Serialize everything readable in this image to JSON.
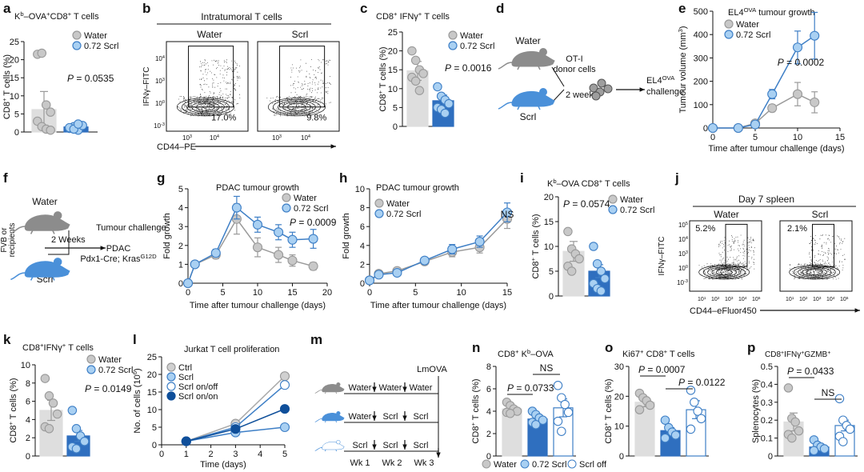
{
  "colors": {
    "water": "#b8b8b8",
    "water_dark": "#8a8a8a",
    "scrl": "#2f6fbf",
    "scrl_light": "#a6cdf0",
    "scrl_mid": "#5b9bd9",
    "onon": "#0f4f9a",
    "axis": "#111111",
    "mouse_grey": "#8c8c8c",
    "mouse_blue": "#4a90d9"
  },
  "chart_data": [
    {
      "id": "a",
      "type": "bar",
      "title": "Kb–OVA+CD8+ T cells",
      "title_parts": [
        "K",
        "b",
        "–OVA",
        "+",
        "CD8",
        "+",
        " T cells"
      ],
      "ylabel": "CD8+ T cells (%)",
      "ylim": [
        0,
        25
      ],
      "yticks": [
        "0",
        "5",
        "10",
        "15",
        "20",
        "25"
      ],
      "categories": [
        "Water",
        "0.72 Scrl"
      ],
      "means": [
        6.2,
        1.4
      ],
      "errors": [
        5.0,
        0.7
      ],
      "points": [
        [
          21.5,
          21.8,
          7.5,
          5.5,
          3.0,
          1.5,
          0.8,
          0.5
        ],
        [
          1.0,
          1.5,
          0.5,
          1.8,
          1.2,
          0.8,
          2.2
        ]
      ],
      "legend": [
        "Water",
        "0.72 Scrl"
      ],
      "annotations": [
        {
          "text_i": "P",
          "text": " = 0.0535"
        }
      ]
    },
    {
      "id": "c",
      "type": "bar",
      "title": "CD8+ IFNγ+ T cells",
      "ylabel": "CD8+ T cells (%)",
      "ylim": [
        0,
        25
      ],
      "yticks": [
        "0",
        "5",
        "10",
        "15",
        "20",
        "25"
      ],
      "categories": [
        "Water",
        "0.72 Scrl"
      ],
      "means": [
        14.7,
        6.8
      ],
      "errors": [
        2.5,
        1.5
      ],
      "points": [
        [
          20.0,
          17.5,
          15.0,
          14.0,
          13.0,
          12.0,
          9.5
        ],
        [
          10.5,
          8.0,
          7.0,
          6.0,
          5.0,
          4.5,
          3.5
        ]
      ],
      "legend": [
        "Water",
        "0.72 Scrl"
      ],
      "annotations": [
        {
          "text_i": "P",
          "text": " = 0.0016"
        }
      ]
    },
    {
      "id": "e",
      "type": "line",
      "title": "EL4OVA tumour growth",
      "title_parts": [
        "EL4",
        "OVA",
        " tumour growth"
      ],
      "xlabel": "Time after tumour challenge (days)",
      "ylabel": "Tumour volume (mm3)",
      "xlim": [
        0,
        15
      ],
      "ylim": [
        0,
        500
      ],
      "xticks": [
        "0",
        "5",
        "10",
        "15"
      ],
      "yticks": [
        "0",
        "100",
        "200",
        "300",
        "400",
        "500"
      ],
      "series": [
        {
          "name": "Water",
          "x": [
            0,
            3,
            5,
            7,
            10,
            12
          ],
          "y": [
            0,
            0,
            20,
            85,
            145,
            110
          ],
          "err": [
            0,
            0,
            5,
            15,
            50,
            45
          ]
        },
        {
          "name": "0.72 Scrl",
          "x": [
            0,
            3,
            5,
            7,
            10,
            12
          ],
          "y": [
            0,
            0,
            15,
            145,
            345,
            395
          ],
          "err": [
            0,
            0,
            5,
            20,
            70,
            100
          ]
        }
      ],
      "legend": [
        "Water",
        "0.72 Scrl"
      ],
      "annotations": [
        {
          "text_i": "P",
          "text": " = 0.0002"
        }
      ]
    },
    {
      "id": "g",
      "type": "line",
      "title": "PDAC tumour growth",
      "xlabel": "Time after tumour challenge (days)",
      "ylabel": "Fold growth",
      "xlim": [
        0,
        20
      ],
      "ylim": [
        0,
        5
      ],
      "xticks": [
        "0",
        "5",
        "10",
        "15",
        "20"
      ],
      "yticks": [
        "0",
        "1",
        "2",
        "3",
        "4",
        "5"
      ],
      "series": [
        {
          "name": "Water",
          "x": [
            0,
            1,
            4,
            7,
            10,
            13,
            15,
            18
          ],
          "y": [
            0,
            1.0,
            1.5,
            3.4,
            1.9,
            1.5,
            1.2,
            0.9
          ],
          "err": [
            0,
            0.1,
            0.2,
            0.8,
            0.5,
            0.4,
            0.3,
            0.2
          ]
        },
        {
          "name": "0.72 Scrl",
          "x": [
            0,
            1,
            4,
            7,
            10,
            13,
            15,
            18
          ],
          "y": [
            0,
            1.0,
            1.6,
            4.0,
            3.1,
            2.7,
            2.3,
            2.35
          ],
          "err": [
            0,
            0.1,
            0.2,
            0.6,
            0.4,
            0.4,
            0.4,
            0.5
          ]
        }
      ],
      "legend": [
        "Water",
        "0.72 Scrl"
      ],
      "annotations": [
        {
          "text_i": "P",
          "text": " = 0.0009"
        }
      ]
    },
    {
      "id": "h",
      "type": "line",
      "title": "PDAC tumour growth",
      "xlabel": "Time after tumour challenge (days)",
      "ylabel": "Fold growth",
      "xlim": [
        0,
        15
      ],
      "ylim": [
        0,
        10
      ],
      "xticks": [
        "0",
        "5",
        "10",
        "15"
      ],
      "yticks": [
        "0",
        "2",
        "4",
        "6",
        "8",
        "10"
      ],
      "series": [
        {
          "name": "Water",
          "x": [
            0,
            1,
            3,
            6,
            9,
            12,
            15
          ],
          "y": [
            0.3,
            1.0,
            1.3,
            2.3,
            3.3,
            3.8,
            6.8
          ],
          "err": [
            0.1,
            0.1,
            0.2,
            0.3,
            0.5,
            0.6,
            1.0
          ]
        },
        {
          "name": "0.72 Scrl",
          "x": [
            0,
            1,
            3,
            6,
            9,
            12,
            15
          ],
          "y": [
            0.3,
            0.9,
            1.1,
            2.4,
            3.6,
            4.4,
            7.5
          ],
          "err": [
            0.1,
            0.1,
            0.2,
            0.3,
            0.5,
            0.6,
            1.0
          ]
        }
      ],
      "legend": [
        "Water",
        "0.72 Scrl"
      ],
      "annotations": [
        {
          "text": "NS"
        }
      ]
    },
    {
      "id": "i",
      "type": "bar",
      "title": "Kb–OVA CD8+ T cells",
      "title_parts": [
        "K",
        "b",
        "–OVA CD8",
        "+",
        " T cells"
      ],
      "ylabel": "CD8+ T cells (%)",
      "ylim": [
        0,
        20
      ],
      "yticks": [
        "0",
        "5",
        "10",
        "15",
        "20"
      ],
      "categories": [
        "Water",
        "0.72 Scrl"
      ],
      "means": [
        9.0,
        5.0
      ],
      "errors": [
        2.0,
        1.3
      ],
      "points": [
        [
          13.0,
          9.5,
          8.5,
          7.5,
          6.0,
          5.0
        ],
        [
          10.0,
          6.5,
          5.0,
          3.5,
          2.5,
          1.5,
          1.0
        ]
      ],
      "legend": [
        "Water",
        "0.72 Scrl"
      ],
      "annotations": [
        {
          "text_i": "P",
          "text": " = 0.0574"
        }
      ]
    },
    {
      "id": "k",
      "type": "bar",
      "title": "CD8+IFNγ+ T cells",
      "ylabel": "CD8+ T cells (%)",
      "ylim": [
        0,
        10
      ],
      "yticks": [
        "0",
        "2",
        "4",
        "6",
        "8",
        "10"
      ],
      "categories": [
        "Water",
        "0.72 Scrl"
      ],
      "means": [
        5.0,
        2.2
      ],
      "errors": [
        1.1,
        0.6
      ],
      "points": [
        [
          8.5,
          6.6,
          5.8,
          4.6,
          3.2,
          3.0
        ],
        [
          5.0,
          3.0,
          2.2,
          1.6,
          1.0,
          0.8
        ]
      ],
      "legend": [
        "Water",
        "0.72 Scrl"
      ],
      "annotations": [
        {
          "text_i": "P",
          "text": " = 0.0149"
        }
      ]
    },
    {
      "id": "l",
      "type": "line",
      "title": "Jurkat T cell proliferation",
      "xlabel": "Time (days)",
      "ylabel": "No. of cells (106)",
      "xlim": [
        0,
        5
      ],
      "ylim": [
        0,
        25
      ],
      "xticks": [
        "0",
        "1",
        "2",
        "3",
        "4",
        "5"
      ],
      "yticks": [
        "0",
        "5",
        "10",
        "15",
        "20",
        "25"
      ],
      "series": [
        {
          "name": "Ctrl",
          "x": [
            1,
            3,
            5
          ],
          "y": [
            1,
            6,
            19.5
          ]
        },
        {
          "name": "Scrl",
          "x": [
            1,
            3,
            5
          ],
          "y": [
            1,
            3.5,
            5
          ]
        },
        {
          "name": "Scrl on/off",
          "x": [
            1,
            3,
            5
          ],
          "y": [
            1,
            5,
            17
          ]
        },
        {
          "name": "Scrl on/on",
          "x": [
            1,
            3,
            5
          ],
          "y": [
            1,
            4.5,
            10.2
          ]
        }
      ],
      "legend": [
        "Ctrl",
        "Scrl",
        "Scrl on/off",
        "Scrl on/on"
      ]
    },
    {
      "id": "n",
      "type": "bar",
      "title": "CD8+ Kb–OVA",
      "title_parts": [
        "CD8",
        "+",
        " K",
        "b",
        "–OVA"
      ],
      "ylabel": "CD8+ T cells (%)",
      "ylim": [
        0,
        8
      ],
      "yticks": [
        "0",
        "2",
        "4",
        "6",
        "8"
      ],
      "categories": [
        "Water",
        "0.72 Scrl",
        "Scrl off"
      ],
      "means": [
        4.2,
        3.3,
        4.3
      ],
      "errors": [
        0.3,
        0.3,
        0.8
      ],
      "points": [
        [
          4.8,
          4.5,
          4.2,
          4.0,
          3.9,
          3.8
        ],
        [
          4.0,
          3.7,
          3.4,
          3.2,
          3.0,
          2.8
        ],
        [
          6.3,
          5.2,
          4.6,
          3.9,
          3.1,
          2.2
        ]
      ],
      "legend": [
        "Water",
        "0.72 Scrl",
        "Scrl off"
      ],
      "annotations": [
        {
          "text_i": "P",
          "text": " = 0.0733"
        },
        {
          "text": "NS"
        }
      ]
    },
    {
      "id": "o",
      "type": "bar",
      "title": "Ki67+ CD8+ T cells",
      "ylabel": "CD8+ T cells (%)",
      "ylim": [
        0,
        30
      ],
      "yticks": [
        "0",
        "10",
        "20",
        "30"
      ],
      "categories": [
        "Water",
        "0.72 Scrl",
        "Scrl off"
      ],
      "means": [
        18.0,
        8.5,
        15.5
      ],
      "errors": [
        1.5,
        1.0,
        3.0
      ],
      "points": [
        [
          21.0,
          19.5,
          18.5,
          17.0,
          15.5
        ],
        [
          12.0,
          9.5,
          8.0,
          7.0,
          6.0
        ],
        [
          22.0,
          18.0,
          15.0,
          12.5,
          9.0
        ]
      ],
      "legend": [
        "Water",
        "0.72 Scrl",
        "Scrl off"
      ],
      "annotations": [
        {
          "text_i": "P",
          "text": " = 0.0007"
        },
        {
          "text_i": "P",
          "text": " = 0.0122"
        }
      ]
    },
    {
      "id": "p",
      "type": "bar",
      "title": "CD8+IFNγ+GZMB+",
      "ylabel": "Splenocytes (%)",
      "ylim": [
        0,
        0.5
      ],
      "yticks": [
        "0",
        "0.1",
        "0.2",
        "0.3",
        "0.4",
        "0.5"
      ],
      "categories": [
        "Water",
        "0.72 Scrl",
        "Scrl off"
      ],
      "means": [
        0.19,
        0.05,
        0.17
      ],
      "errors": [
        0.05,
        0.01,
        0.03
      ],
      "points": [
        [
          0.38,
          0.21,
          0.19,
          0.14,
          0.12,
          0.1
        ],
        [
          0.09,
          0.06,
          0.05,
          0.04,
          0.03
        ],
        [
          0.32,
          0.2,
          0.17,
          0.15,
          0.11,
          0.08
        ]
      ],
      "legend": [
        "Water",
        "0.72 Scrl",
        "Scrl off"
      ],
      "annotations": [
        {
          "text_i": "P",
          "text": " = 0.0433"
        },
        {
          "text": "NS"
        }
      ]
    },
    {
      "id": "b",
      "type": "flow",
      "title": "Intratumoral T cells",
      "xlabel": "CD44–PE",
      "ylabel": "IFNγ–FITC",
      "panels": [
        "Water",
        "Scrl"
      ],
      "gate_percent": [
        "17.0%",
        "9.8%"
      ],
      "ticks": [
        "10-3",
        "0",
        "103",
        "104",
        "105"
      ],
      "xticks": [
        "103",
        "104"
      ]
    },
    {
      "id": "j",
      "type": "flow",
      "title": "Day 7 spleen",
      "xlabel": "CD44–eFluor450",
      "ylabel": "IFNγ–FITC",
      "panels": [
        "Water",
        "Scrl"
      ],
      "gate_percent": [
        "5.2%",
        "2.1%"
      ],
      "ticks": [
        "10-3",
        "100",
        "103",
        "104",
        "105"
      ],
      "xticks": [
        "101",
        "102",
        "103",
        "104",
        "105"
      ]
    }
  ],
  "labels": {
    "a": "a",
    "b": "b",
    "c": "c",
    "d": "d",
    "e": "e",
    "f": "f",
    "g": "g",
    "h": "h",
    "i": "i",
    "j": "j",
    "k": "k",
    "l": "l",
    "m": "m",
    "n": "n",
    "o": "o",
    "p": "p"
  },
  "schematic_d": {
    "water": "Water",
    "scrl": "Scrl",
    "weeks": "2 weeks",
    "donor": [
      "OT-I",
      "donor cells"
    ],
    "challenge": [
      "EL4OVA",
      "challenge"
    ]
  },
  "schematic_f": {
    "water": "Water",
    "scrl": "Scrl",
    "recipients": [
      "FVB or Rag2–/–",
      "recipients"
    ],
    "weeks": "2 Weeks",
    "tumour": "Tumour challenge",
    "pdac": "PDAC",
    "model": "Pdx1-Cre; KrasG12D"
  },
  "schematic_m": {
    "top": [
      "Water",
      "Water",
      "Water"
    ],
    "mid": [
      "Water",
      "Scrl",
      "Scrl"
    ],
    "bot": [
      "Scrl",
      "Scrl",
      "Scrl"
    ],
    "weeks": [
      "Wk 1",
      "Wk 2",
      "Wk 3"
    ],
    "lmova": "LmOVA"
  }
}
